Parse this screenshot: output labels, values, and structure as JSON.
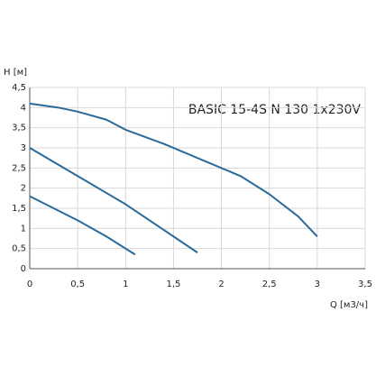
{
  "chart_data": {
    "type": "line",
    "y_label": "H [м]",
    "x_label": "Q [м3/ч]",
    "annotation": "BASIC 15-4S N 130 1x230V",
    "xlim": [
      0,
      3.5
    ],
    "xticks": [
      0,
      {
        "value": 0.5,
        "label": "0,5"
      },
      1,
      {
        "value": 1.5,
        "label": "1,5"
      },
      2,
      {
        "value": 2.5,
        "label": "2,5"
      },
      3,
      {
        "value": 3.5,
        "label": "3,5"
      }
    ],
    "ylim": [
      0,
      4.5
    ],
    "yticks": [
      0,
      {
        "value": 0.5,
        "label": "0,5"
      },
      1,
      {
        "value": 1.5,
        "label": "1,5"
      },
      2,
      {
        "value": 2.5,
        "label": "2,5"
      },
      3,
      {
        "value": 3.5,
        "label": "3,5"
      },
      4,
      {
        "value": 4.5,
        "label": "4,5"
      }
    ],
    "grid": true,
    "series": [
      {
        "color": "#2a6a98",
        "x": [
          0,
          0.3,
          0.5,
          0.8,
          1,
          1.4,
          1.8,
          2.2,
          2.5,
          2.8,
          3
        ],
        "values": [
          4.1,
          4.0,
          3.9,
          3.7,
          3.45,
          3.1,
          2.7,
          2.3,
          1.85,
          1.3,
          0.8
        ]
      },
      {
        "color": "#2a6a98",
        "x": [
          0,
          0.5,
          1,
          1.5,
          1.75
        ],
        "values": [
          3.0,
          2.3,
          1.6,
          0.8,
          0.4
        ]
      },
      {
        "color": "#2a6a98",
        "x": [
          0,
          0.5,
          0.8,
          1.1
        ],
        "values": [
          1.8,
          1.2,
          0.8,
          0.35
        ]
      }
    ]
  }
}
